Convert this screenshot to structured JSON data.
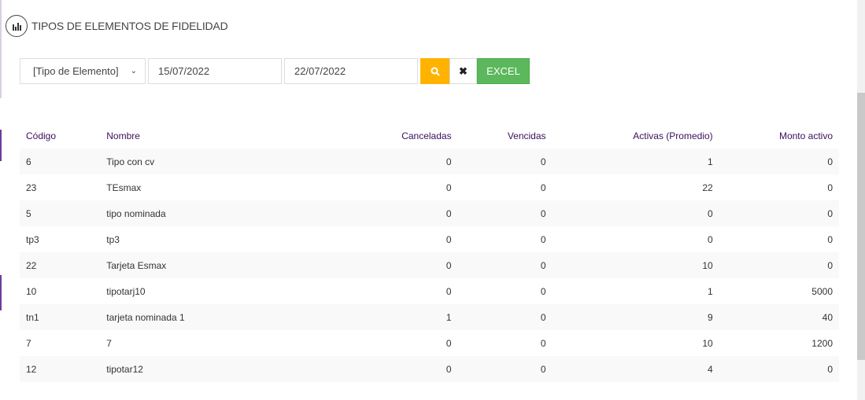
{
  "title": "TIPOS DE ELEMENTOS DE FIDELIDAD",
  "filters": {
    "type_select": "[Tipo de Elemento]",
    "date_from": "15/07/2022",
    "date_to": "22/07/2022",
    "excel_label": "EXCEL"
  },
  "table": {
    "headers": [
      "Código",
      "Nombre",
      "Canceladas",
      "Vencidas",
      "Activas (Promedio)",
      "Monto activo"
    ],
    "rows": [
      [
        "6",
        "Tipo con cv",
        "0",
        "0",
        "1",
        "0"
      ],
      [
        "23",
        "TEsmax",
        "0",
        "0",
        "22",
        "0"
      ],
      [
        "5",
        "tipo nominada",
        "0",
        "0",
        "0",
        "0"
      ],
      [
        "tp3",
        "tp3",
        "0",
        "0",
        "0",
        "0"
      ],
      [
        "22",
        "Tarjeta Esmax",
        "0",
        "0",
        "10",
        "0"
      ],
      [
        "10",
        "tipotarj10",
        "0",
        "0",
        "1",
        "5000"
      ],
      [
        "tn1",
        "tarjeta nominada 1",
        "1",
        "0",
        "9",
        "40"
      ],
      [
        "7",
        "7",
        "0",
        "0",
        "10",
        "1200"
      ],
      [
        "12",
        "tipotar12",
        "0",
        "0",
        "4",
        "0"
      ]
    ]
  },
  "colors": {
    "search": "#ffb300",
    "excel": "#5cb85c",
    "header_text": "#3b0f5c"
  }
}
